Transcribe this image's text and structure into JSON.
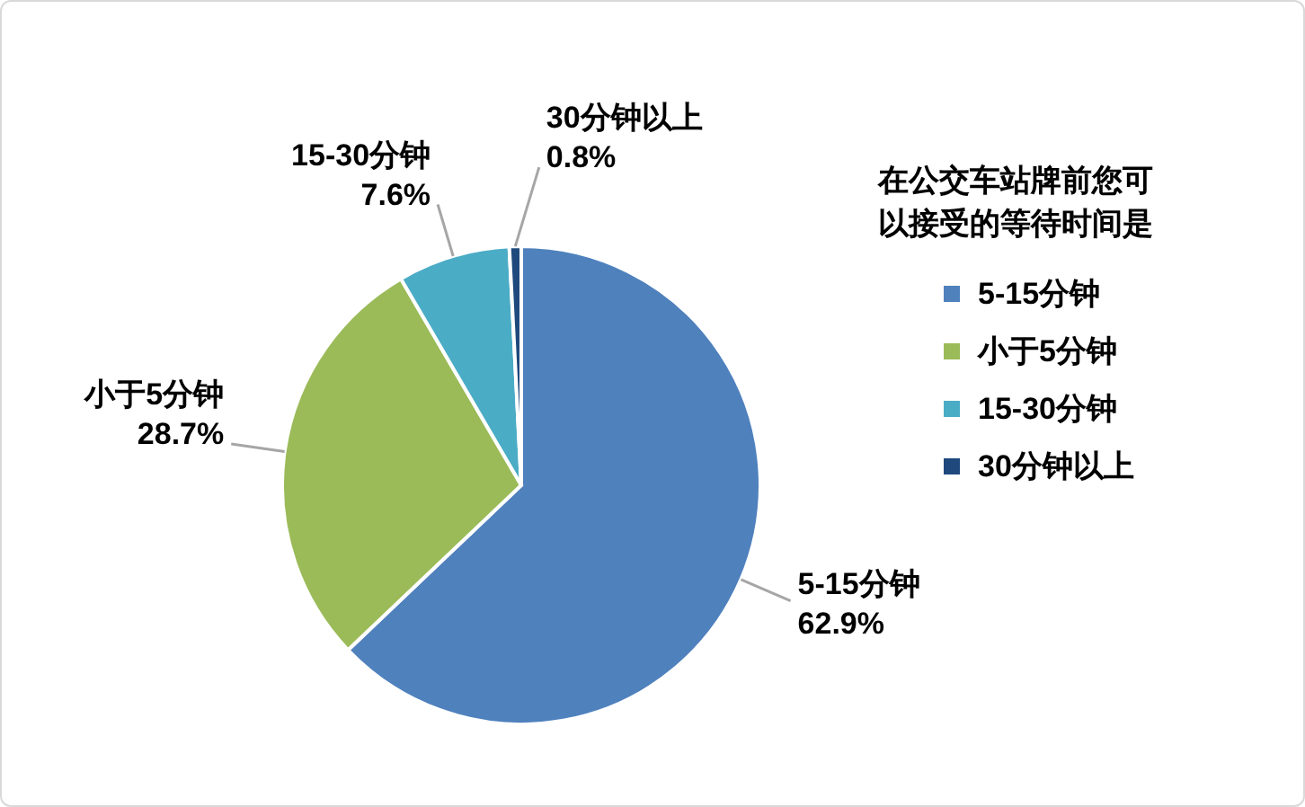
{
  "chart_data": {
    "type": "pie",
    "legend_title": "在公交车站牌前您可以接受的等待时间是",
    "categories": [
      "5-15分钟",
      "小于5分钟",
      "15-30分钟",
      "30分钟以上"
    ],
    "values": [
      62.9,
      28.7,
      7.6,
      0.8
    ],
    "colors": [
      "#4f81bd",
      "#9bbb59",
      "#4bacc6",
      "#1f497d"
    ],
    "value_labels": [
      "62.9%",
      "28.7%",
      "7.6%",
      "0.8%"
    ],
    "legend": "right"
  }
}
